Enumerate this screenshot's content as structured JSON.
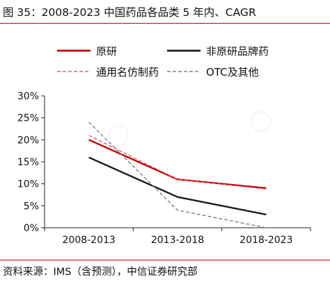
{
  "header": {
    "title": "图 35：2008-2023 中国药品各品类 5 年内、CAGR"
  },
  "footer": {
    "source": "资料来源：IMS（含预测），中信证券研究部"
  },
  "chart_data": {
    "type": "line",
    "categories": [
      "2008-2013",
      "2013-2018",
      "2018-2023"
    ],
    "y_ticks": [
      "0%",
      "5%",
      "10%",
      "15%",
      "20%",
      "25%",
      "30%"
    ],
    "ylim": [
      0,
      30
    ],
    "y_unit": "%",
    "grid": false,
    "legend_position": "top",
    "series": [
      {
        "name": "原研",
        "values": [
          20,
          11,
          9
        ],
        "color": "#c00000",
        "style": "solid",
        "weight": "bold"
      },
      {
        "name": "非原研品牌药",
        "values": [
          16,
          7,
          3
        ],
        "color": "#1a1a1a",
        "style": "solid",
        "weight": "bold"
      },
      {
        "name": "通用名仿制药",
        "values": [
          21,
          11,
          8.8
        ],
        "color": "#e06070",
        "style": "dashed",
        "weight": "thin"
      },
      {
        "name": "OTC及其他",
        "values": [
          24,
          4,
          0
        ],
        "color": "#808080",
        "style": "dashed",
        "weight": "thin"
      }
    ]
  }
}
